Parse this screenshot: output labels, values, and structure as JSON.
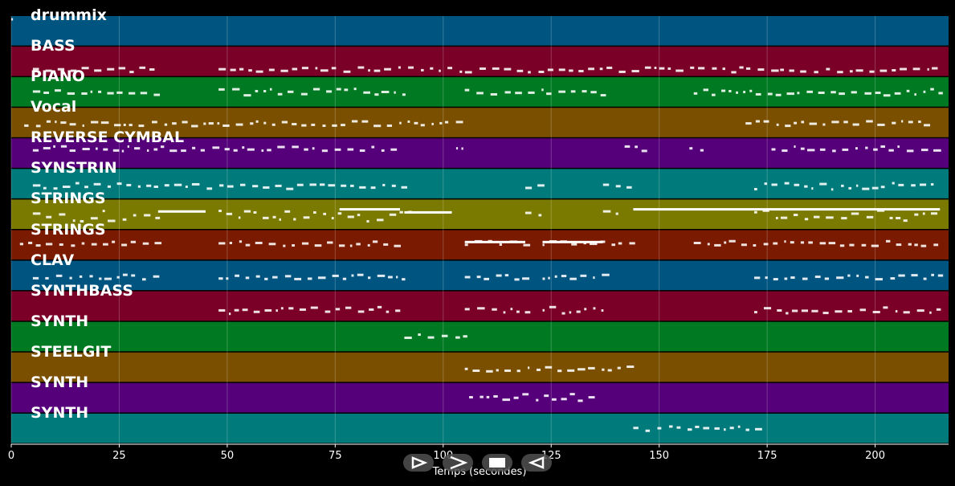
{
  "chart_data": {
    "type": "piano-roll",
    "xlabel": "Temps (secondes)",
    "xlim": [
      0,
      217
    ],
    "xticks": [
      0,
      25,
      50,
      75,
      100,
      125,
      150,
      175,
      200
    ],
    "grid": true,
    "tracks": [
      {
        "name": "drummix",
        "color": "#005580"
      },
      {
        "name": "BASS",
        "color": "#7a0028"
      },
      {
        "name": "PIANO",
        "color": "#007a22"
      },
      {
        "name": "Vocal",
        "color": "#7a5000"
      },
      {
        "name": "REVERSE CYMBAL",
        "color": "#55007a"
      },
      {
        "name": "SYNSTRIN",
        "color": "#007a7a"
      },
      {
        "name": "STRINGS",
        "color": "#7a7a00"
      },
      {
        "name": "STRINGS",
        "color": "#7a1a00"
      },
      {
        "name": "CLAV",
        "color": "#005580"
      },
      {
        "name": "SYNTHBASS",
        "color": "#7a0028"
      },
      {
        "name": "SYNTH",
        "color": "#007a22"
      },
      {
        "name": "STEELGIT",
        "color": "#7a5000"
      },
      {
        "name": "SYNTH",
        "color": "#55007a"
      },
      {
        "name": "SYNTH",
        "color": "#007a7a"
      }
    ]
  },
  "controls": [
    {
      "name": "play-button",
      "icon": "play-outline-icon"
    },
    {
      "name": "forward-button",
      "icon": "chevron-right-icon"
    },
    {
      "name": "stop-button",
      "icon": "stop-icon"
    },
    {
      "name": "rewind-button",
      "icon": "rewind-icon"
    }
  ]
}
